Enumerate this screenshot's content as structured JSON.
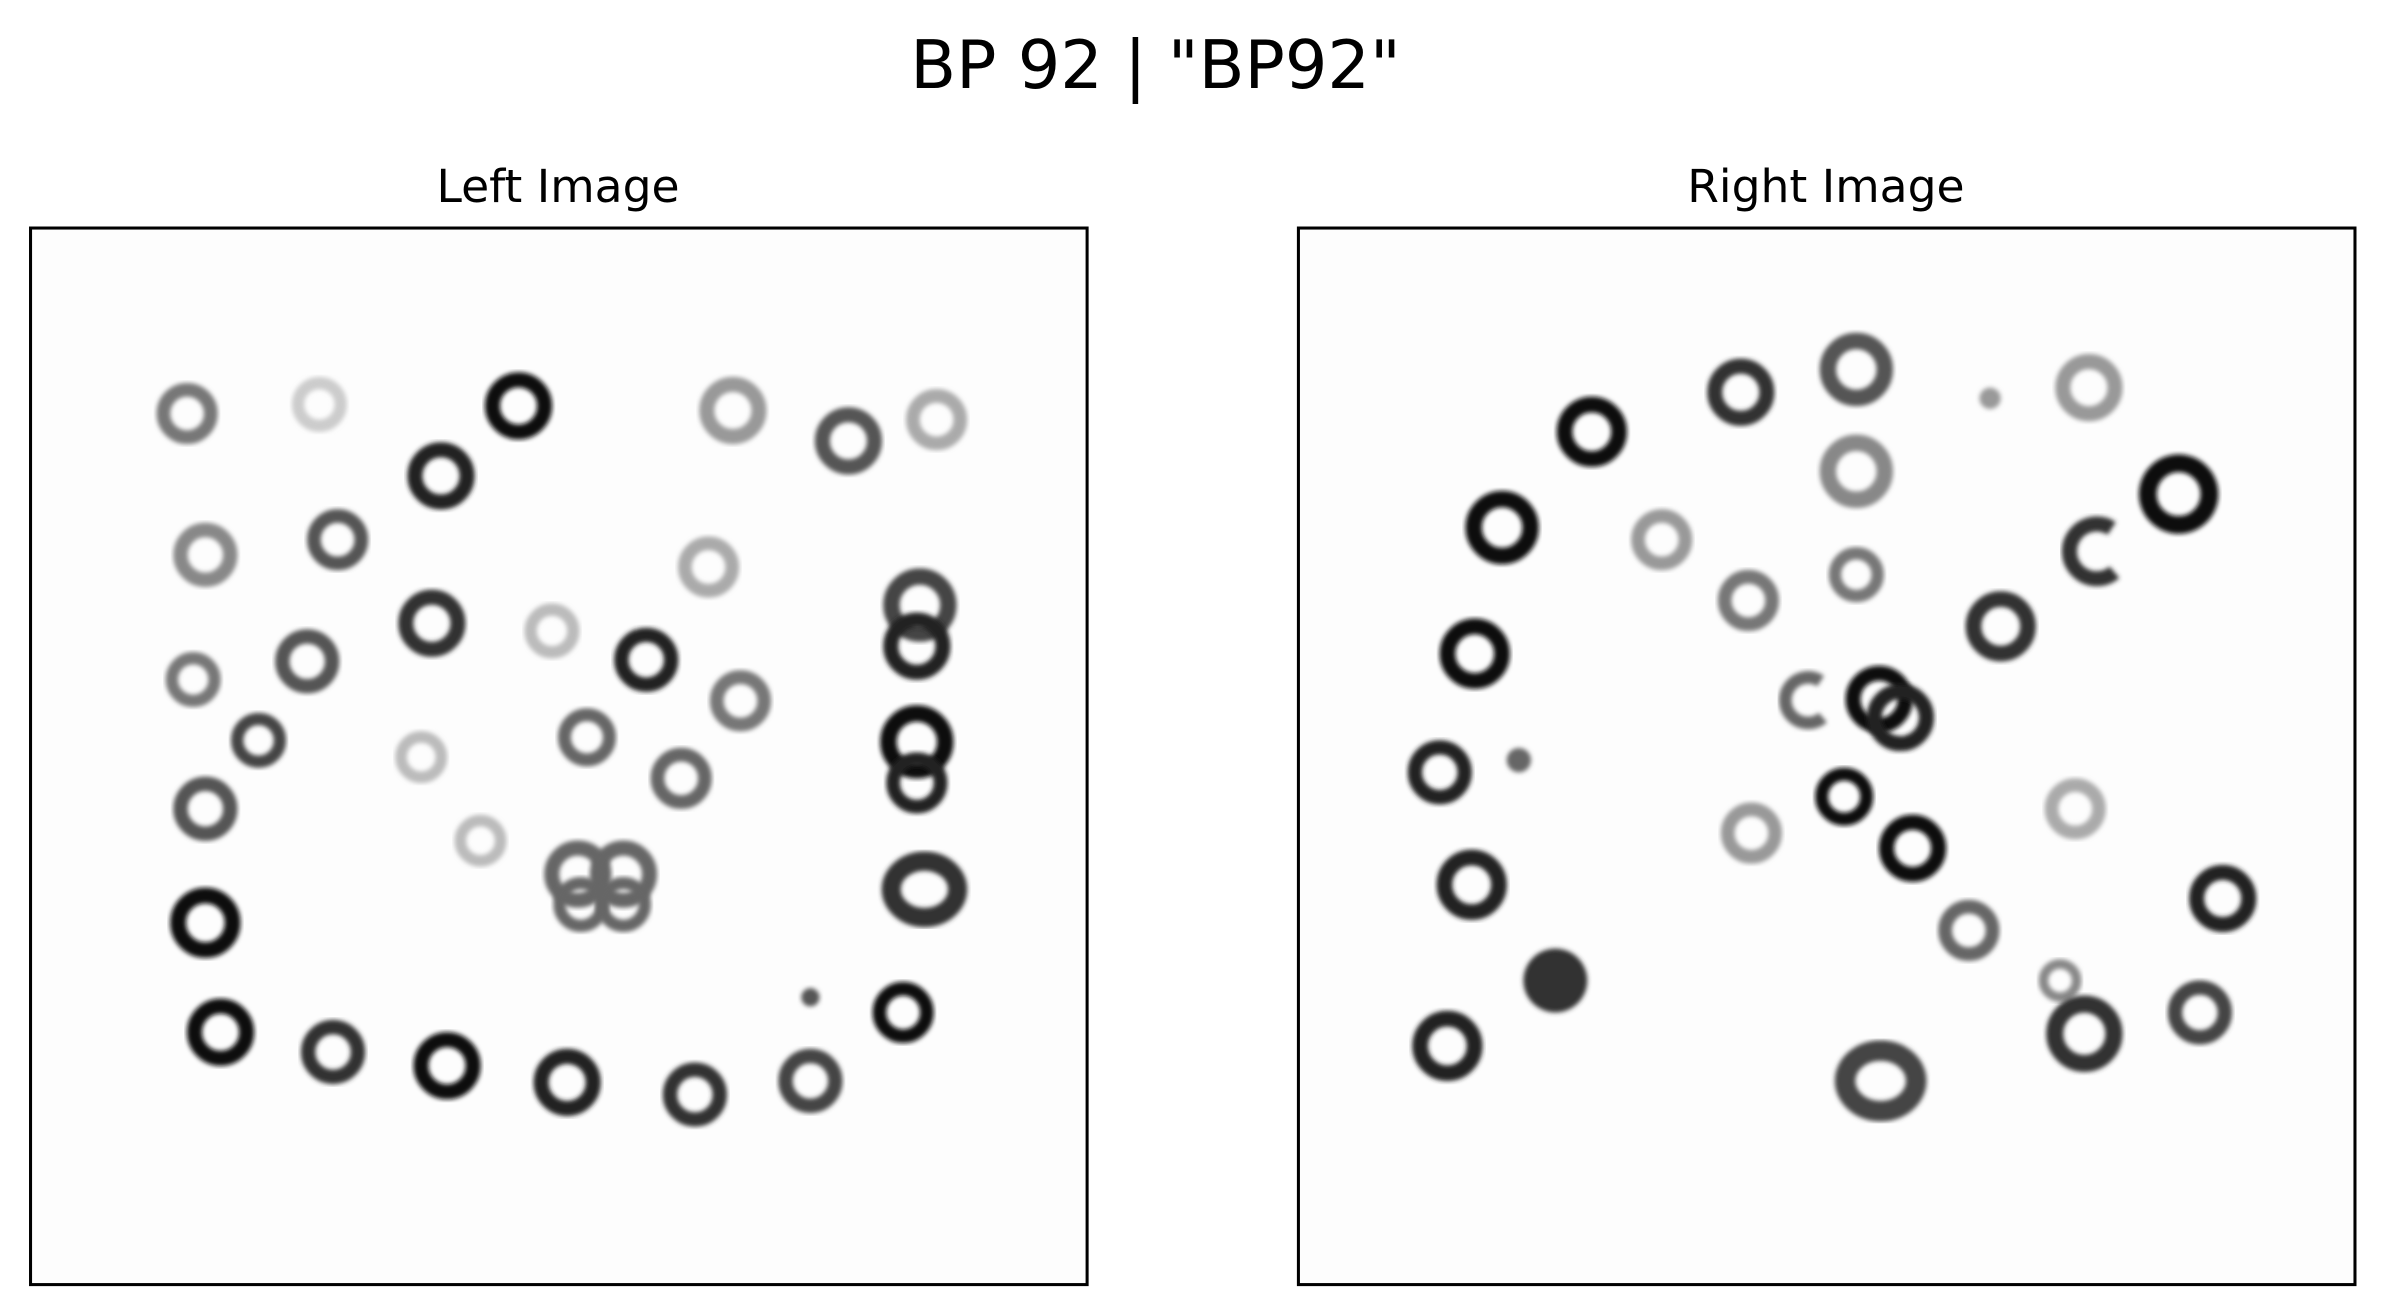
{
  "figure": {
    "title": "BP 92 | \"BP92\"",
    "panels": [
      {
        "title": "Left Image"
      },
      {
        "title": "Right Image"
      }
    ]
  }
}
